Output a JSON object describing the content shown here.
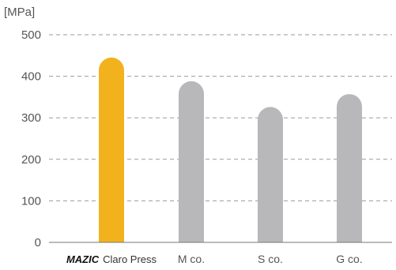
{
  "chart_data": {
    "type": "bar",
    "ylabel": "[MPa]",
    "ylim": [
      0,
      500
    ],
    "yticks": [
      0,
      100,
      200,
      300,
      400,
      500
    ],
    "grid": "horizontal-dashed",
    "categories": [
      {
        "brand": "MAZIC",
        "label": "Claro Press"
      },
      {
        "brand": "",
        "label": "M co."
      },
      {
        "brand": "",
        "label": "S co."
      },
      {
        "brand": "",
        "label": "G co."
      }
    ],
    "values": [
      445,
      388,
      326,
      357
    ],
    "colors": [
      "#F2B21E",
      "#B8B8BB",
      "#B8B8BB",
      "#B8B8BB"
    ]
  }
}
